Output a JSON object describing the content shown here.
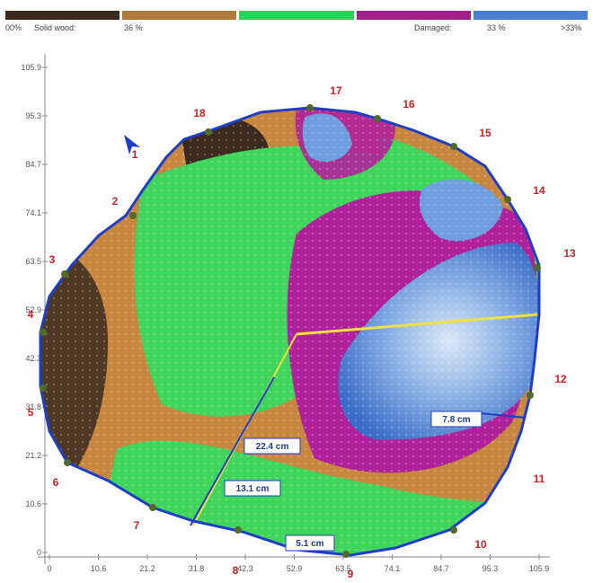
{
  "colorbar": {
    "colors": [
      "#3a2a1e",
      "#b07a3a",
      "#2fcf5a",
      "#a0208a",
      "#4a7fd4"
    ],
    "labels": {
      "left": "00%",
      "solid": "Solid wood:",
      "solid_pct": "36 %",
      "damaged": "Damaged:",
      "damaged_pct": "33 %",
      "right": ">33%"
    }
  },
  "axis": {
    "x_ticks": [
      "0",
      "10.6",
      "21.2",
      "31.8",
      "42.3",
      "52.9",
      "63.5",
      "74.1",
      "84.7",
      "95.3",
      "105.9"
    ],
    "y_ticks": [
      "105.9",
      "95.3",
      "84.7",
      "74.1",
      "63.5",
      "52.9",
      "42.3",
      "31.8",
      "21.2",
      "10.6",
      "0"
    ]
  },
  "nodes": [
    "1",
    "2",
    "3",
    "4",
    "5",
    "6",
    "7",
    "8",
    "9",
    "10",
    "11",
    "12",
    "13",
    "14",
    "15",
    "16",
    "17",
    "18"
  ],
  "measurements": {
    "path_long": "22.4 cm",
    "path_mid": "13.1 cm",
    "path_short": "5.1 cm",
    "path_right": "7.8 cm"
  },
  "colors": {
    "outline": "#1f3ec8",
    "solid_dark": "#3a2a1e",
    "solid": "#c8873f",
    "healthy": "#3fd45a",
    "damaged": "#b0209a",
    "cavity": "#4a80d4",
    "cavity_light": "#cfe0f2",
    "yellow_line": "#f0e040",
    "node_color": "#cc2222",
    "sensor": "#4f6a2a"
  }
}
